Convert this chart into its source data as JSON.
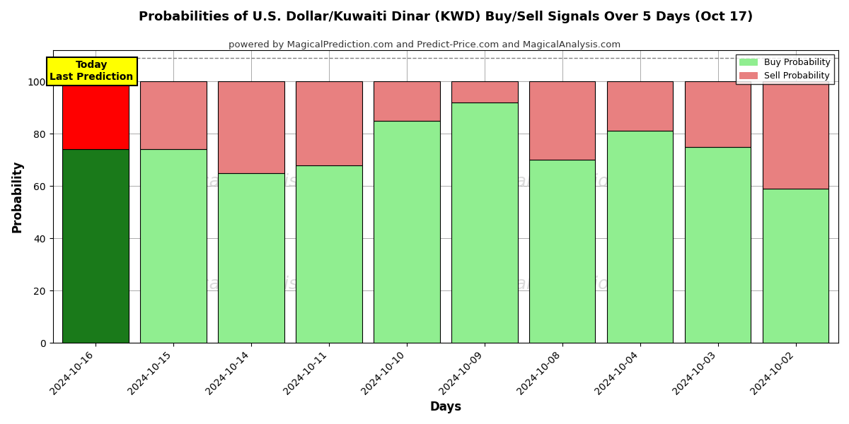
{
  "title": "Probabilities of U.S. Dollar/Kuwaiti Dinar (KWD) Buy/Sell Signals Over 5 Days (Oct 17)",
  "subtitle": "powered by MagicalPrediction.com and Predict-Price.com and MagicalAnalysis.com",
  "xlabel": "Days",
  "ylabel": "Probability",
  "dates": [
    "2024-10-16",
    "2024-10-15",
    "2024-10-14",
    "2024-10-11",
    "2024-10-10",
    "2024-10-09",
    "2024-10-08",
    "2024-10-04",
    "2024-10-03",
    "2024-10-02"
  ],
  "buy_values": [
    74,
    74,
    65,
    68,
    85,
    92,
    70,
    81,
    75,
    59
  ],
  "sell_values": [
    26,
    26,
    35,
    32,
    15,
    8,
    30,
    19,
    25,
    41
  ],
  "today_bar_buy_color": "#1a7a1a",
  "today_bar_sell_color": "#ff0000",
  "other_bar_buy_color": "#90ee90",
  "other_bar_sell_color": "#e88080",
  "bar_edge_color": "#000000",
  "today_annotation_text": "Today\nLast Prediction",
  "today_annotation_bg": "#ffff00",
  "legend_buy_label": "Buy Probability",
  "legend_sell_label": "Sell Probability",
  "ylim": [
    0,
    112
  ],
  "yticks": [
    0,
    20,
    40,
    60,
    80,
    100
  ],
  "dashed_line_y": 109,
  "bg_color": "#ffffff",
  "grid_color": "#aaaaaa",
  "bar_width": 0.85
}
